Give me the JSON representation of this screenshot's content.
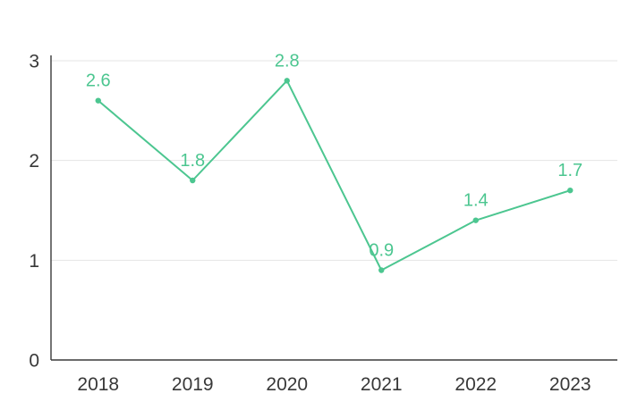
{
  "chart_data": {
    "type": "line",
    "categories": [
      "2018",
      "2019",
      "2020",
      "2021",
      "2022",
      "2023"
    ],
    "values": [
      2.6,
      1.8,
      2.8,
      0.9,
      1.4,
      1.7
    ],
    "data_labels": [
      "2.6",
      "1.8",
      "2.8",
      "0.9",
      "1.4",
      "1.7"
    ],
    "title": "",
    "xlabel": "",
    "ylabel": "",
    "ylim": [
      0,
      3
    ],
    "yticks": [
      0,
      1,
      2,
      3
    ],
    "ytick_labels": [
      "0",
      "1",
      "2",
      "3"
    ],
    "grid": true,
    "legend": false,
    "colors": {
      "series": "#4cc690",
      "data_label": "#4cc690",
      "grid": "#e4e4e4",
      "axis": "#3a3a3a",
      "tick_label": "#383838",
      "background": "#ffffff"
    }
  }
}
